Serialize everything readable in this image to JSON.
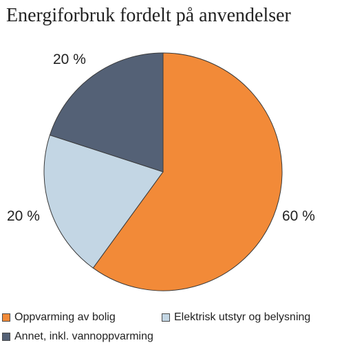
{
  "chart_data": {
    "type": "pie",
    "title": "Energiforbruk fordelt på anvendelser",
    "slices": [
      {
        "name": "Oppvarming av bolig",
        "value": 60,
        "label": "60 %",
        "color": "#f28a38"
      },
      {
        "name": "Elektrisk utstyr og belysning",
        "value": 20,
        "label": "20 %",
        "color": "#c3d6e4"
      },
      {
        "name": "Annet, inkl. vannoppvarming",
        "value": 20,
        "label": "20 %",
        "color": "#546176"
      }
    ],
    "start": "12 o'clock",
    "direction": "clockwise",
    "legend_position": "bottom"
  }
}
